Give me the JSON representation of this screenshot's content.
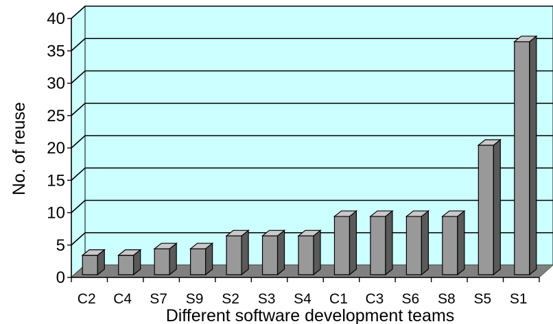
{
  "chart_data": {
    "type": "bar",
    "title": "",
    "xlabel": "Different software development teams",
    "ylabel": "No. of reuse",
    "categories": [
      "C2",
      "C4",
      "S7",
      "S9",
      "S2",
      "S3",
      "S4",
      "C1",
      "C3",
      "S6",
      "S8",
      "S5",
      "S1"
    ],
    "values": [
      3,
      3,
      4,
      4,
      6,
      6,
      6,
      9,
      9,
      9,
      9,
      20,
      36
    ],
    "ylim": [
      0,
      40
    ],
    "yticks": [
      "0",
      "5",
      "10",
      "15",
      "20",
      "25",
      "30",
      "35",
      "40"
    ],
    "grid": true,
    "colors": {
      "wall": "#ccffff",
      "floor": "#808080",
      "bar_front": "#999999",
      "bar_side": "#5a5a5a",
      "bar_top": "#c8c8c8",
      "gridline": "#000000"
    }
  }
}
